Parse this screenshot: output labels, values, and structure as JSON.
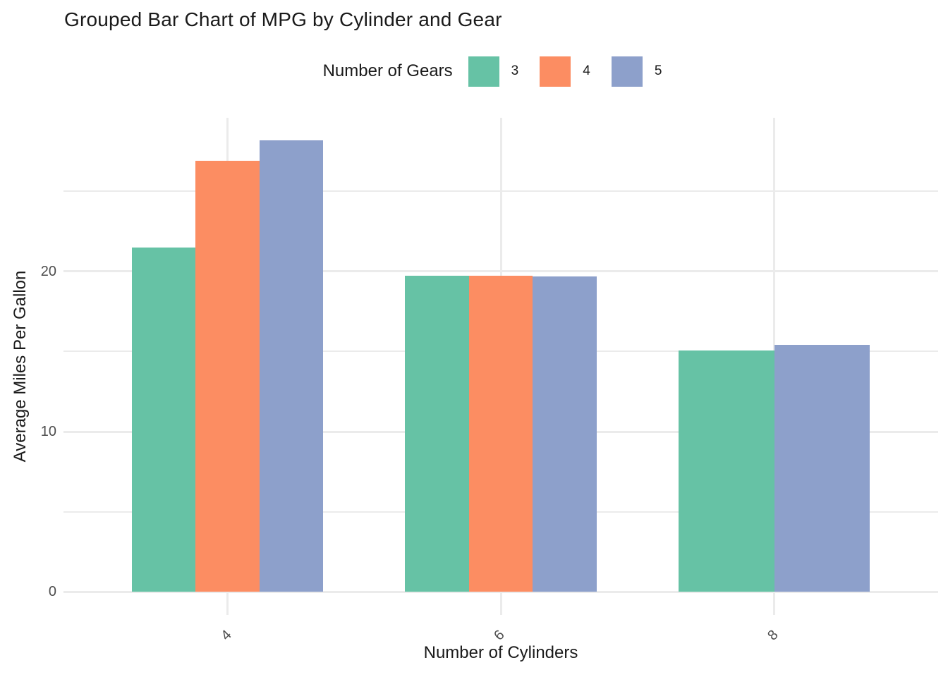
{
  "figure": {
    "title": "Grouped Bar Chart of MPG by Cylinder and Gear",
    "background_color": "#FFFFFF"
  },
  "legend": {
    "title": "Number of Gears",
    "position": "top",
    "entries": [
      {
        "label": "3",
        "color": "#66C2A5"
      },
      {
        "label": "4",
        "color": "#FC8D62"
      },
      {
        "label": "5",
        "color": "#8DA0CB"
      }
    ]
  },
  "axes": {
    "x_title": "Number of Cylinders",
    "y_title": "Average Miles Per Gallon",
    "x_tick_labels": [
      "4",
      "6",
      "8"
    ],
    "y_tick_labels": [
      "0",
      "10",
      "20"
    ],
    "x_tick_angle_deg": 45,
    "tick_text_color": "#4D4D4D"
  },
  "chart_data": {
    "type": "bar",
    "title": "Grouped Bar Chart of MPG by Cylinder and Gear",
    "xlabel": "Number of Cylinders",
    "ylabel": "Average Miles Per Gallon",
    "categories": [
      "4",
      "6",
      "8"
    ],
    "series": [
      {
        "name": "3",
        "color": "#66C2A5",
        "values": [
          21.5,
          19.75,
          15.05
        ]
      },
      {
        "name": "4",
        "color": "#FC8D62",
        "values": [
          26.925,
          19.75,
          null
        ]
      },
      {
        "name": "5",
        "color": "#8DA0CB",
        "values": [
          28.2,
          19.7,
          15.4
        ]
      }
    ],
    "y_major_ticks": [
      0,
      10,
      20
    ],
    "y_minor_ticks": [
      5,
      15,
      25
    ],
    "ylim": [
      -1.45,
      29.6
    ],
    "bar_group_width": 0.7,
    "grid": {
      "on": true,
      "color": "#EBEBEB",
      "vertical_at_categories": true
    },
    "legend_position": "top",
    "legend_title": "Number of Gears"
  }
}
